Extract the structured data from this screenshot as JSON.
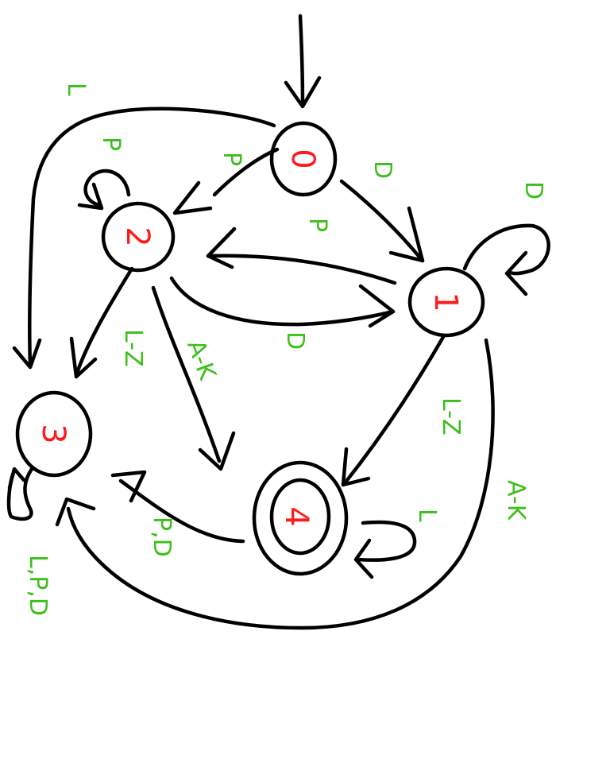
{
  "colors": {
    "edge": "#000000",
    "state": "#ff1a1a",
    "label": "#3cbf1a",
    "background": "#ffffff"
  },
  "states": [
    {
      "id": "q0",
      "text": "0",
      "start": true,
      "accepting": false
    },
    {
      "id": "q1",
      "text": "1",
      "start": false,
      "accepting": false
    },
    {
      "id": "q2",
      "text": "2",
      "start": false,
      "accepting": false
    },
    {
      "id": "q3",
      "text": "3",
      "start": false,
      "accepting": false
    },
    {
      "id": "q4",
      "text": "4",
      "start": false,
      "accepting": true
    }
  ],
  "transitions": [
    {
      "id": "t0-2",
      "from": "0",
      "to": "2",
      "label": "P"
    },
    {
      "id": "t0-1",
      "from": "0",
      "to": "1",
      "label": "D"
    },
    {
      "id": "t0-3",
      "from": "0",
      "to": "3",
      "label": "L"
    },
    {
      "id": "t2-2",
      "from": "2",
      "to": "2",
      "label": "P"
    },
    {
      "id": "t1-2",
      "from": "1",
      "to": "2",
      "label": "P"
    },
    {
      "id": "t2-1",
      "from": "2",
      "to": "1",
      "label": "D"
    },
    {
      "id": "t1-1",
      "from": "1",
      "to": "1",
      "label": "D"
    },
    {
      "id": "t2-3",
      "from": "2",
      "to": "3",
      "label": "L-Z"
    },
    {
      "id": "t2-4",
      "from": "2",
      "to": "4",
      "label": "A-K"
    },
    {
      "id": "t1-4",
      "from": "1",
      "to": "4",
      "label": "L-Z"
    },
    {
      "id": "t1-3",
      "from": "1",
      "to": "3",
      "label": "A-K"
    },
    {
      "id": "t4-4",
      "from": "4",
      "to": "4",
      "label": "L"
    },
    {
      "id": "t4-3",
      "from": "4",
      "to": "3",
      "label": "P,D"
    },
    {
      "id": "t3-3",
      "from": "3",
      "to": "3",
      "label": "L,P,D"
    }
  ]
}
